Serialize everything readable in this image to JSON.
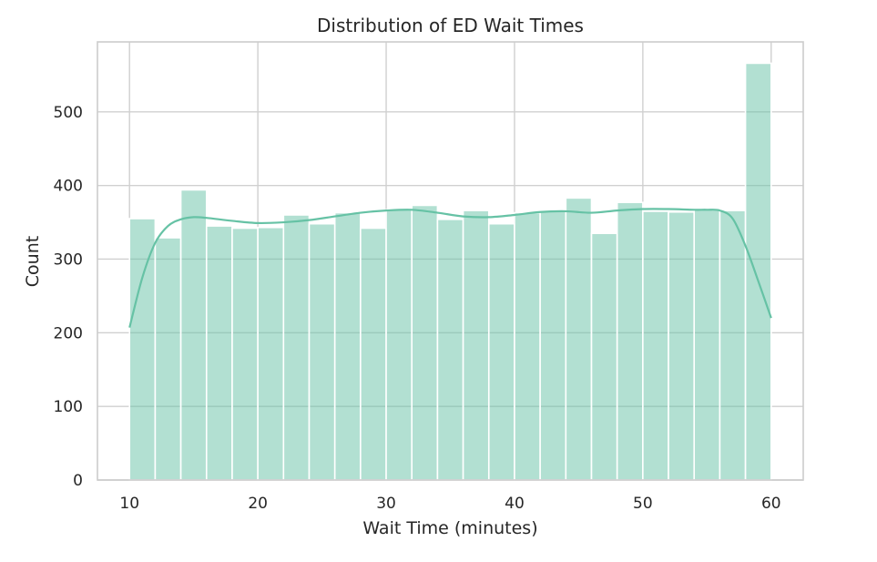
{
  "chart_data": {
    "type": "bar",
    "title": "Distribution of ED Wait Times",
    "xlabel": "Wait Time (minutes)",
    "ylabel": "Count",
    "xlim": [
      7.5,
      62.5
    ],
    "ylim": [
      0,
      595
    ],
    "xticks": [
      10,
      20,
      30,
      40,
      50,
      60
    ],
    "yticks": [
      0,
      100,
      200,
      300,
      400,
      500
    ],
    "bin_edges": [
      10,
      12,
      14,
      16,
      18,
      20,
      22,
      24,
      26,
      28,
      30,
      32,
      34,
      36,
      38,
      40,
      42,
      44,
      46,
      48,
      50,
      52,
      54,
      56,
      58,
      60
    ],
    "counts": [
      355,
      329,
      394,
      345,
      342,
      343,
      360,
      348,
      363,
      342,
      367,
      373,
      354,
      366,
      348,
      363,
      366,
      383,
      335,
      377,
      365,
      364,
      369,
      366,
      566
    ],
    "kde": {
      "x": [
        10,
        11,
        12,
        13,
        14,
        15,
        16,
        18,
        20,
        22,
        24,
        26,
        28,
        30,
        32,
        34,
        36,
        38,
        40,
        42,
        44,
        46,
        48,
        50,
        52,
        54,
        55,
        56,
        57,
        58,
        59,
        60
      ],
      "y": [
        207,
        275,
        322,
        345,
        354,
        357,
        356,
        352,
        349,
        350,
        353,
        358,
        363,
        366,
        367,
        363,
        358,
        357,
        360,
        364,
        365,
        363,
        366,
        368,
        368,
        367,
        367,
        366,
        355,
        318,
        270,
        220
      ]
    },
    "colors": {
      "bar": "#66c2a5",
      "bar_opacity": 0.5,
      "kde": "#66c2a5",
      "bar_edge": "#ffffff"
    },
    "grid": true,
    "legend": "none"
  }
}
